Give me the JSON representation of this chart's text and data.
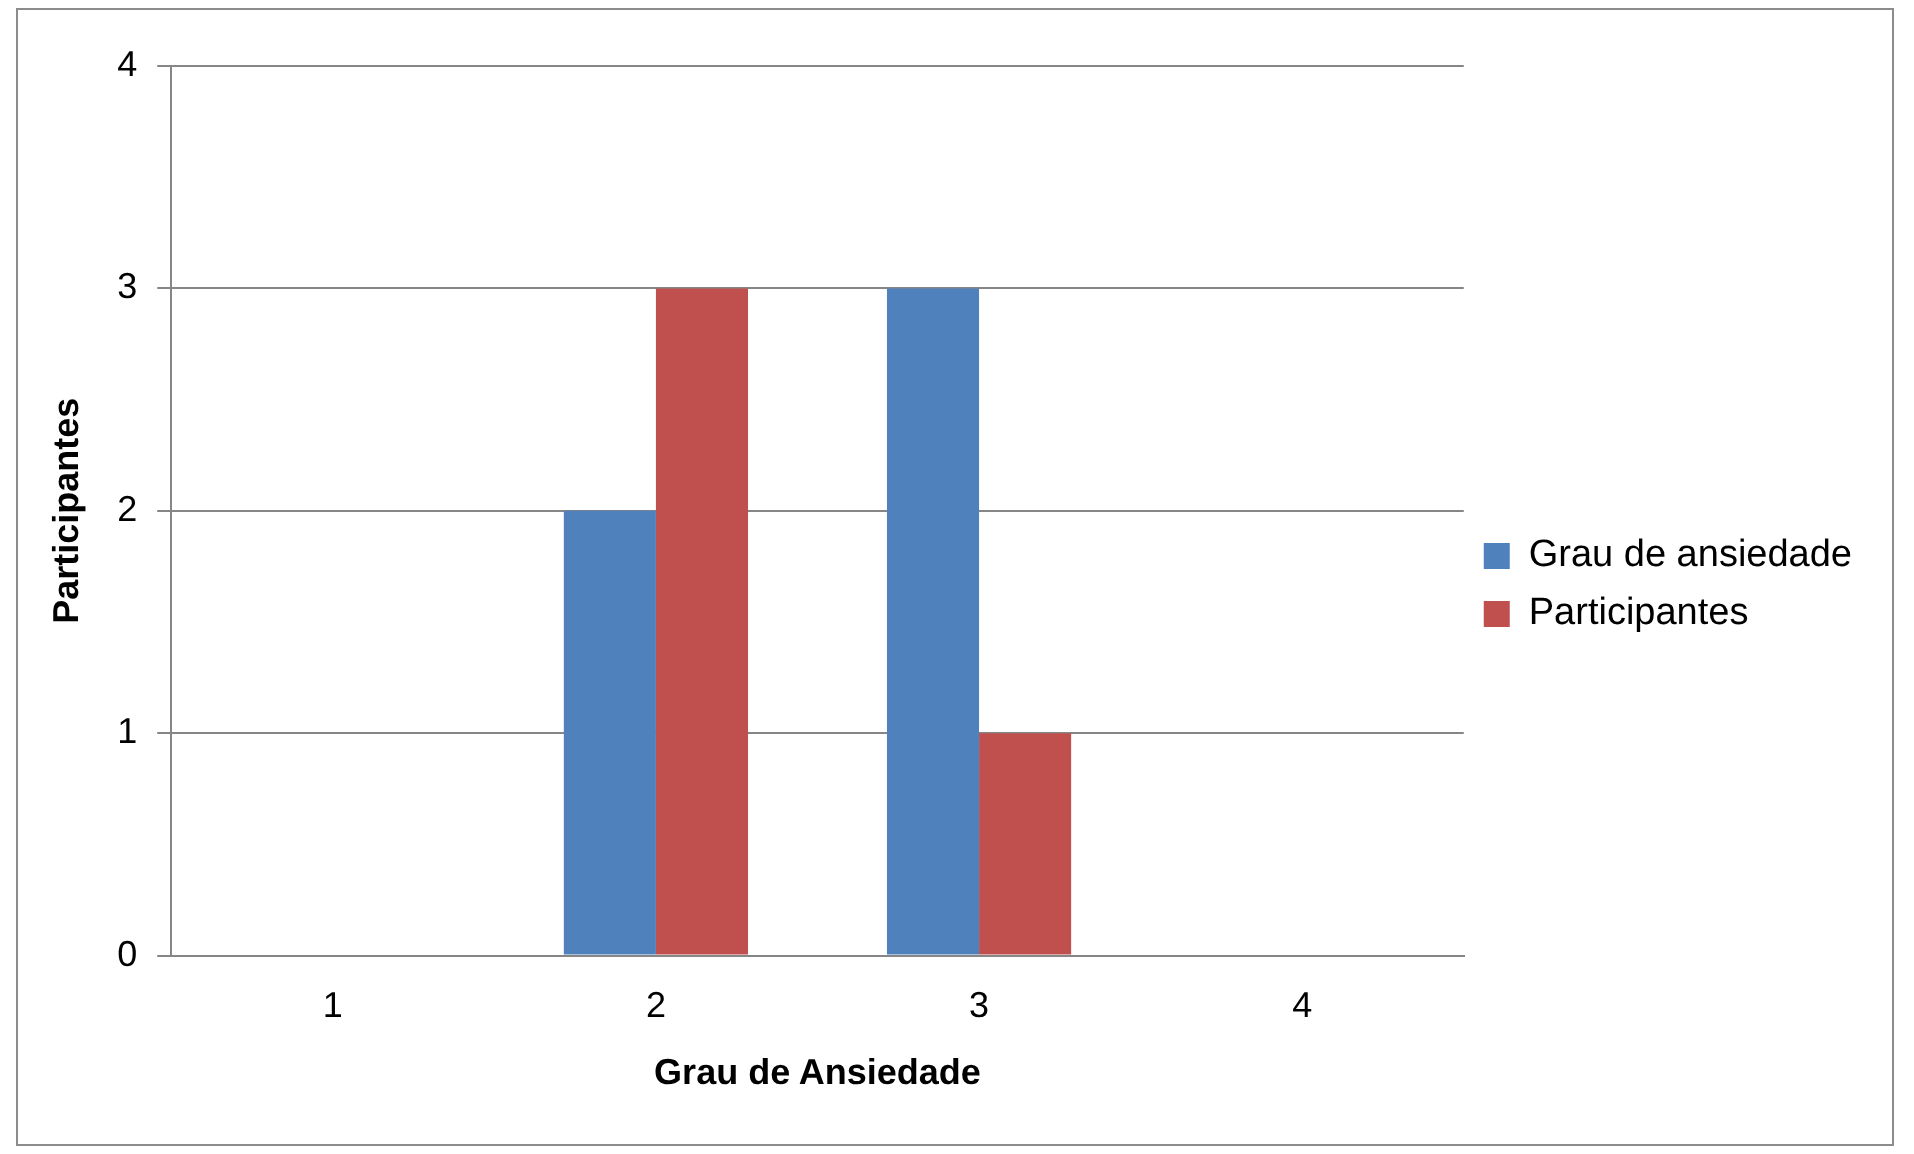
{
  "chart_data": {
    "type": "bar",
    "xlabel": "Grau de Ansiedade",
    "ylabel": "Participantes",
    "categories": [
      "1",
      "2",
      "3",
      "4"
    ],
    "series": [
      {
        "name": "Grau de ansiedade",
        "color": "#4f81bd",
        "values": [
          null,
          2,
          3,
          null
        ]
      },
      {
        "name": "Participantes",
        "color": "#c0504d",
        "values": [
          null,
          3,
          1,
          null
        ]
      }
    ],
    "ylim": [
      0,
      4
    ],
    "yticks": [
      0,
      1,
      2,
      3,
      4
    ],
    "grid": "y",
    "legend": "right"
  }
}
